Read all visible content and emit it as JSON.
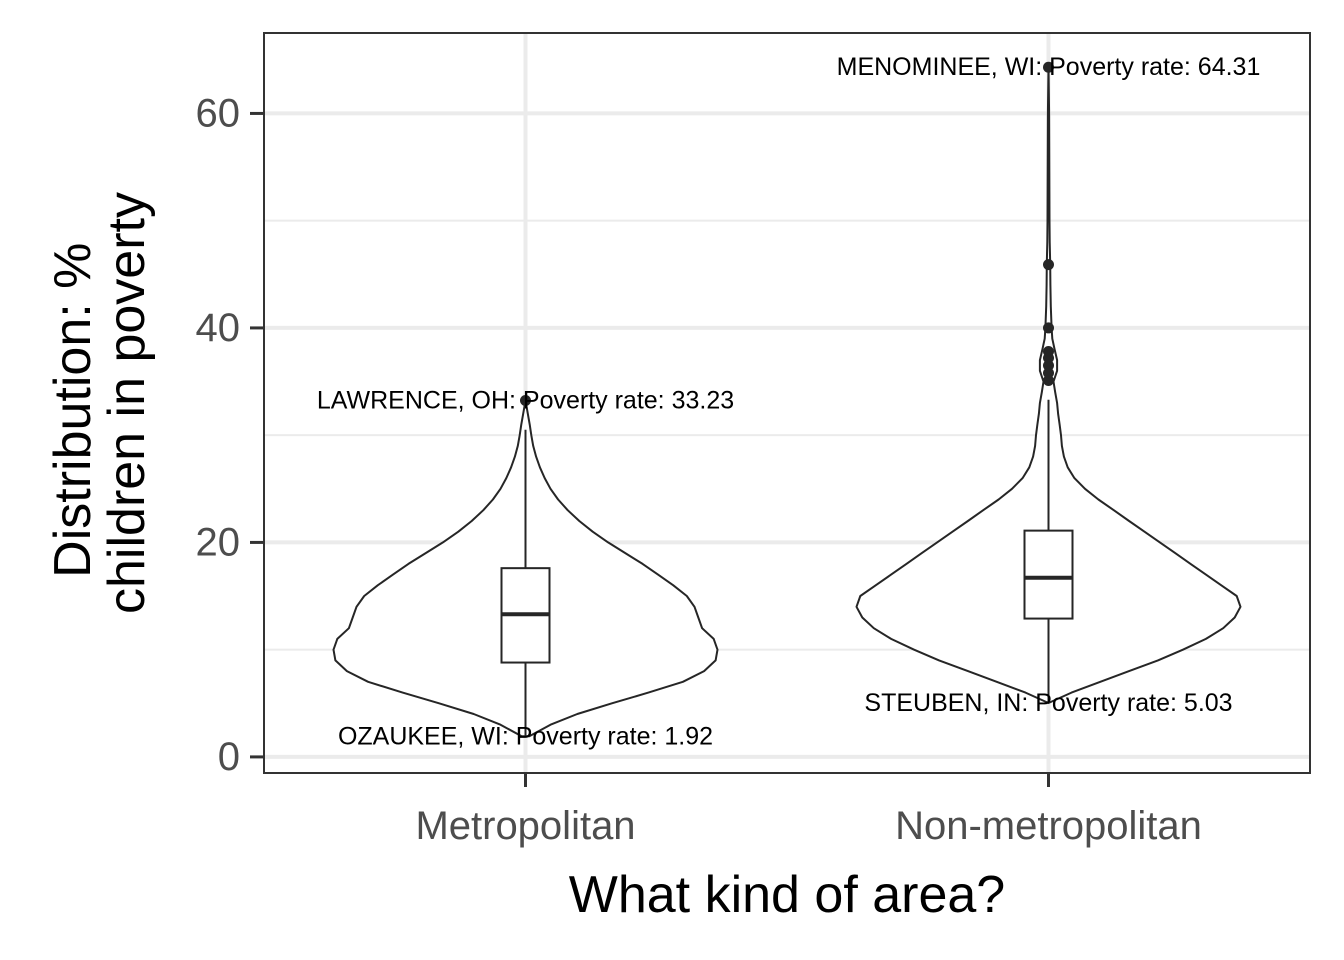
{
  "chart_data": {
    "type": "violin",
    "xlabel": "What kind of area?",
    "ylabel": [
      "Distribution: %",
      "children in poverty"
    ],
    "ylim": [
      -1.5,
      67.5
    ],
    "yticks": [
      0,
      20,
      40,
      60
    ],
    "grid": true,
    "categories": [
      "Metropolitan",
      "Non-metropolitan"
    ],
    "groups": [
      {
        "name": "Metropolitan",
        "min": 1.92,
        "max": 33.23,
        "box": {
          "q1": 8.8,
          "median": 13.3,
          "q3": 17.6,
          "whisker_low": 1.92,
          "whisker_high": 30.5
        },
        "outliers": [
          33.23
        ],
        "density": [
          [
            1.92,
            0.02
          ],
          [
            3.0,
            0.13
          ],
          [
            4.0,
            0.27
          ],
          [
            5.0,
            0.45
          ],
          [
            6.0,
            0.64
          ],
          [
            7.0,
            0.82
          ],
          [
            8.0,
            0.93
          ],
          [
            9.0,
            0.99
          ],
          [
            10.0,
            1.0
          ],
          [
            11.0,
            0.98
          ],
          [
            12.0,
            0.92
          ],
          [
            13.0,
            0.9
          ],
          [
            14.0,
            0.88
          ],
          [
            15.0,
            0.84
          ],
          [
            16.0,
            0.77
          ],
          [
            17.0,
            0.69
          ],
          [
            18.0,
            0.61
          ],
          [
            19.0,
            0.52
          ],
          [
            20.0,
            0.43
          ],
          [
            21.0,
            0.35
          ],
          [
            22.0,
            0.28
          ],
          [
            23.0,
            0.22
          ],
          [
            24.0,
            0.17
          ],
          [
            25.0,
            0.13
          ],
          [
            26.0,
            0.1
          ],
          [
            27.0,
            0.075
          ],
          [
            28.0,
            0.055
          ],
          [
            29.0,
            0.04
          ],
          [
            30.0,
            0.03
          ],
          [
            31.0,
            0.022
          ],
          [
            32.0,
            0.012
          ],
          [
            33.23,
            0.0
          ]
        ]
      },
      {
        "name": "Non-metropolitan",
        "min": 5.03,
        "max": 64.31,
        "box": {
          "q1": 12.9,
          "median": 16.7,
          "q3": 21.1,
          "whisker_low": 5.03,
          "whisker_high": 33.3
        },
        "outliers": [
          35.1,
          35.8,
          36.5,
          37.2,
          37.8,
          40.0,
          45.9,
          64.31
        ],
        "density": [
          [
            5.03,
            0.0
          ],
          [
            6.0,
            0.12
          ],
          [
            7.0,
            0.27
          ],
          [
            8.0,
            0.42
          ],
          [
            9.0,
            0.57
          ],
          [
            10.0,
            0.7
          ],
          [
            11.0,
            0.82
          ],
          [
            12.0,
            0.91
          ],
          [
            13.0,
            0.97
          ],
          [
            14.0,
            1.0
          ],
          [
            15.0,
            0.98
          ],
          [
            16.0,
            0.9
          ],
          [
            17.0,
            0.82
          ],
          [
            18.0,
            0.74
          ],
          [
            19.0,
            0.66
          ],
          [
            20.0,
            0.58
          ],
          [
            21.0,
            0.5
          ],
          [
            22.0,
            0.42
          ],
          [
            23.0,
            0.34
          ],
          [
            24.0,
            0.26
          ],
          [
            25.0,
            0.19
          ],
          [
            26.0,
            0.135
          ],
          [
            27.0,
            0.1
          ],
          [
            28.0,
            0.08
          ],
          [
            29.0,
            0.07
          ],
          [
            30.0,
            0.065
          ],
          [
            31.0,
            0.058
          ],
          [
            32.0,
            0.05
          ],
          [
            33.0,
            0.045
          ],
          [
            34.0,
            0.035
          ],
          [
            35.0,
            0.026
          ],
          [
            36.0,
            0.045
          ],
          [
            37.0,
            0.045
          ],
          [
            38.0,
            0.032
          ],
          [
            39.0,
            0.02
          ],
          [
            40.0,
            0.016
          ],
          [
            42.0,
            0.012
          ],
          [
            44.0,
            0.01
          ],
          [
            46.0,
            0.009
          ],
          [
            48.0,
            0.006
          ],
          [
            50.0,
            0.005
          ],
          [
            55.0,
            0.004
          ],
          [
            60.0,
            0.003
          ],
          [
            64.31,
            0.0
          ]
        ]
      }
    ],
    "annotations": [
      {
        "group": "Metropolitan",
        "text": "LAWRENCE, OH: Poverty rate: 33.23",
        "value": 33.23
      },
      {
        "group": "Metropolitan",
        "text": "OZAUKEE, WI: Poverty rate: 1.92",
        "value": 1.92
      },
      {
        "group": "Non-metropolitan",
        "text": "MENOMINEE, WI: Poverty rate: 64.31",
        "value": 64.31
      },
      {
        "group": "Non-metropolitan",
        "text": "STEUBEN, IN: Poverty rate: 5.03",
        "value": 5.03
      }
    ],
    "colors": {
      "line": "#262626",
      "grid": "#ebebeb",
      "frame": "#333333"
    }
  }
}
